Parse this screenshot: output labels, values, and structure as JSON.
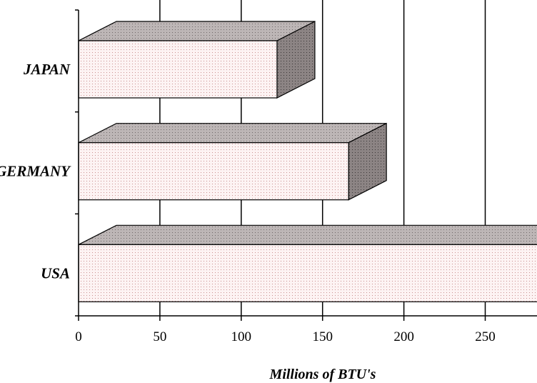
{
  "chart_data": {
    "type": "bar",
    "orientation": "horizontal",
    "three_d": true,
    "categories": [
      "JAPAN",
      "GERMANY",
      "USA"
    ],
    "values": [
      122,
      166,
      300
    ],
    "xlabel": "Millions of BTU's",
    "ylabel": "",
    "xlim": [
      0,
      281
    ],
    "x_ticks": [
      0,
      50,
      100,
      150,
      200,
      250
    ],
    "grid": "vertical",
    "legend": "none",
    "colors": {
      "bar_front": "#fdf3f3",
      "bar_dots": "#c98f8f",
      "bar_top": "#bdb6b6",
      "bar_side": "#8c8484",
      "grid": "#000000"
    }
  }
}
